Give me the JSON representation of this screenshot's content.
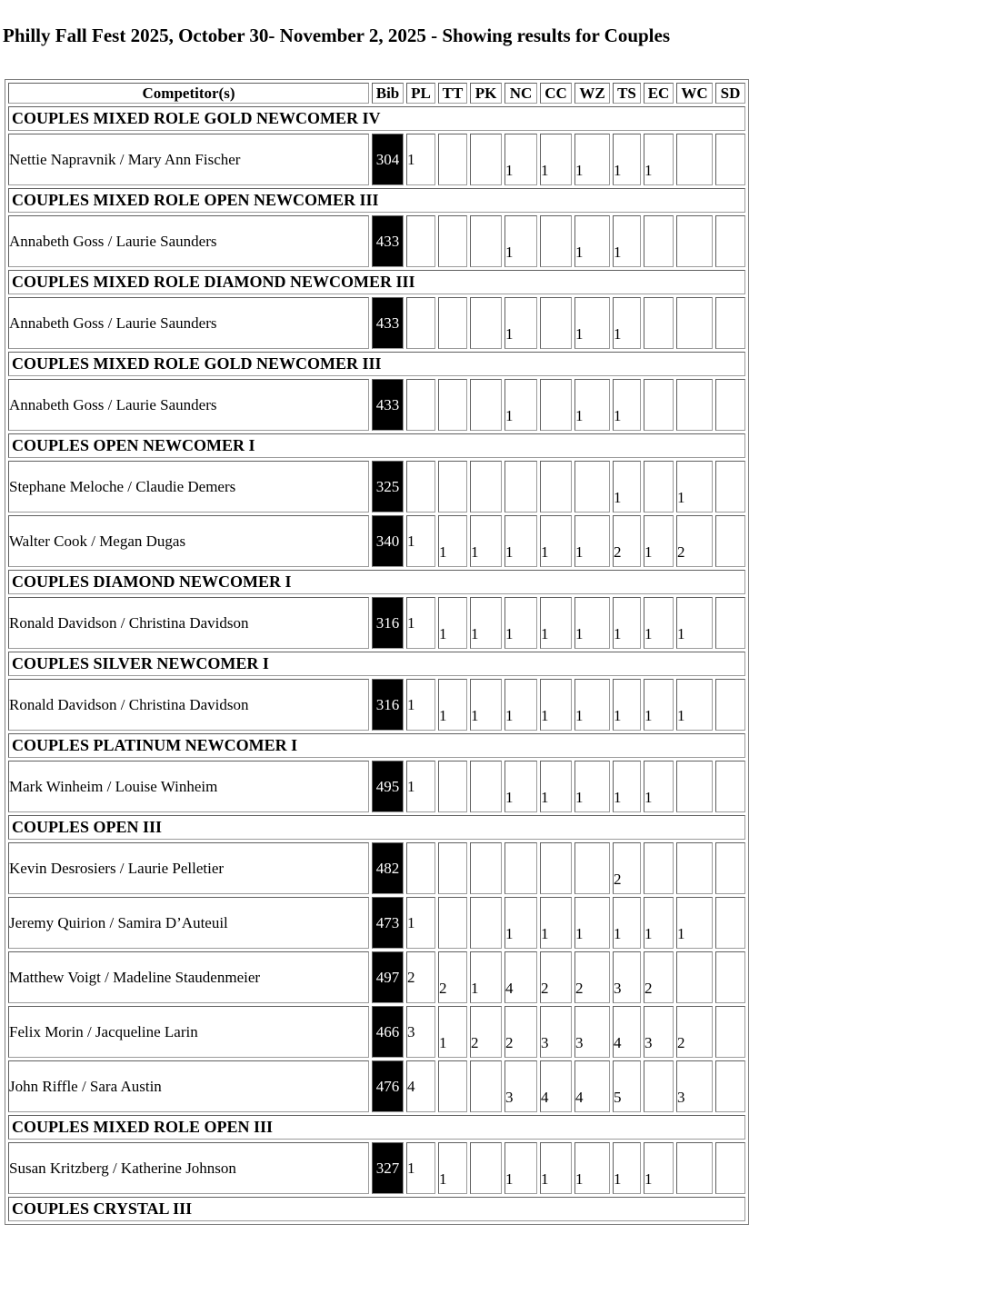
{
  "page_title": "Philly Fall Fest 2025, October 30- November 2, 2025 - Showing results for Couples",
  "table": {
    "columns": [
      "Competitor(s)",
      "Bib",
      "PL",
      "TT",
      "PK",
      "NC",
      "CC",
      "WZ",
      "TS",
      "EC",
      "WC",
      "SD"
    ],
    "sections": [
      {
        "title": "COUPLES MIXED ROLE GOLD NEWCOMER IV",
        "rows": [
          {
            "competitor": "Nettie Napravnik / Mary Ann Fischer",
            "bib": "304",
            "pl": "1",
            "scores": [
              "",
              "",
              "1",
              "1",
              "1",
              "1",
              "1",
              "",
              ""
            ]
          }
        ]
      },
      {
        "title": "COUPLES MIXED ROLE OPEN NEWCOMER III",
        "rows": [
          {
            "competitor": "Annabeth Goss / Laurie Saunders",
            "bib": "433",
            "pl": "",
            "scores": [
              "",
              "",
              "1",
              "",
              "1",
              "1",
              "",
              "",
              ""
            ]
          }
        ]
      },
      {
        "title": "COUPLES MIXED ROLE DIAMOND NEWCOMER III",
        "rows": [
          {
            "competitor": "Annabeth Goss / Laurie Saunders",
            "bib": "433",
            "pl": "",
            "scores": [
              "",
              "",
              "1",
              "",
              "1",
              "1",
              "",
              "",
              ""
            ]
          }
        ]
      },
      {
        "title": "COUPLES MIXED ROLE GOLD NEWCOMER III",
        "rows": [
          {
            "competitor": "Annabeth Goss / Laurie Saunders",
            "bib": "433",
            "pl": "",
            "scores": [
              "",
              "",
              "1",
              "",
              "1",
              "1",
              "",
              "",
              ""
            ]
          }
        ]
      },
      {
        "title": "COUPLES OPEN NEWCOMER I",
        "rows": [
          {
            "competitor": "Stephane Meloche / Claudie Demers",
            "bib": "325",
            "pl": "",
            "scores": [
              "",
              "",
              "",
              "",
              "",
              "1",
              "",
              "1",
              ""
            ]
          },
          {
            "competitor": "Walter Cook / Megan Dugas",
            "bib": "340",
            "pl": "1",
            "scores": [
              "1",
              "1",
              "1",
              "1",
              "1",
              "2",
              "1",
              "2",
              ""
            ]
          }
        ]
      },
      {
        "title": "COUPLES DIAMOND NEWCOMER I",
        "rows": [
          {
            "competitor": "Ronald Davidson / Christina Davidson",
            "bib": "316",
            "pl": "1",
            "scores": [
              "1",
              "1",
              "1",
              "1",
              "1",
              "1",
              "1",
              "1",
              ""
            ]
          }
        ]
      },
      {
        "title": "COUPLES SILVER NEWCOMER I",
        "rows": [
          {
            "competitor": "Ronald Davidson / Christina Davidson",
            "bib": "316",
            "pl": "1",
            "scores": [
              "1",
              "1",
              "1",
              "1",
              "1",
              "1",
              "1",
              "1",
              ""
            ]
          }
        ]
      },
      {
        "title": "COUPLES PLATINUM NEWCOMER I",
        "rows": [
          {
            "competitor": "Mark Winheim / Louise Winheim",
            "bib": "495",
            "pl": "1",
            "scores": [
              "",
              "",
              "1",
              "1",
              "1",
              "1",
              "1",
              "",
              ""
            ]
          }
        ]
      },
      {
        "title": "COUPLES OPEN III",
        "rows": [
          {
            "competitor": "Kevin Desrosiers / Laurie Pelletier",
            "bib": "482",
            "pl": "",
            "scores": [
              "",
              "",
              "",
              "",
              "",
              "2",
              "",
              "",
              ""
            ]
          },
          {
            "competitor": "Jeremy Quirion / Samira D’Auteuil",
            "bib": "473",
            "pl": "1",
            "scores": [
              "",
              "",
              "1",
              "1",
              "1",
              "1",
              "1",
              "1",
              ""
            ]
          },
          {
            "competitor": "Matthew Voigt / Madeline Staudenmeier",
            "bib": "497",
            "pl": "2",
            "scores": [
              "2",
              "1",
              "4",
              "2",
              "2",
              "3",
              "2",
              "",
              ""
            ]
          },
          {
            "competitor": "Felix Morin / Jacqueline Larin",
            "bib": "466",
            "pl": "3",
            "scores": [
              "1",
              "2",
              "2",
              "3",
              "3",
              "4",
              "3",
              "2",
              ""
            ]
          },
          {
            "competitor": "John Riffle / Sara Austin",
            "bib": "476",
            "pl": "4",
            "scores": [
              "",
              "",
              "3",
              "4",
              "4",
              "5",
              "",
              "3",
              ""
            ]
          }
        ]
      },
      {
        "title": "COUPLES MIXED ROLE OPEN III",
        "rows": [
          {
            "competitor": "Susan Kritzberg / Katherine Johnson",
            "bib": "327",
            "pl": "1",
            "scores": [
              "1",
              "",
              "1",
              "1",
              "1",
              "1",
              "1",
              "",
              ""
            ]
          }
        ]
      },
      {
        "title": "COUPLES CRYSTAL III",
        "rows": []
      }
    ]
  }
}
